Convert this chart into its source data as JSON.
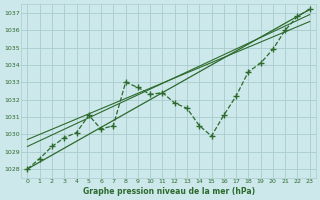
{
  "xlabel": "Graphe pression niveau de la mer (hPa)",
  "bg_color": "#cce8ea",
  "grid_color": "#aacccc",
  "line_color": "#2d6a2d",
  "xlim": [
    -0.5,
    23.5
  ],
  "ylim": [
    1027.5,
    1037.5
  ],
  "yticks": [
    1028,
    1029,
    1030,
    1031,
    1032,
    1033,
    1034,
    1035,
    1036,
    1037
  ],
  "xticks": [
    0,
    1,
    2,
    3,
    4,
    5,
    6,
    7,
    8,
    9,
    10,
    11,
    12,
    13,
    14,
    15,
    16,
    17,
    18,
    19,
    20,
    21,
    22,
    23
  ],
  "data_x": [
    0,
    1,
    2,
    3,
    4,
    5,
    6,
    7,
    8,
    9,
    10,
    11,
    12,
    13,
    14,
    15,
    16,
    17,
    18,
    19,
    20,
    21,
    22,
    23
  ],
  "data_y": [
    1028.0,
    1028.6,
    1029.3,
    1029.8,
    1030.1,
    1031.1,
    1030.3,
    1030.5,
    1033.0,
    1032.7,
    1032.3,
    1032.4,
    1031.8,
    1031.5,
    1030.5,
    1029.9,
    1031.1,
    1032.2,
    1033.6,
    1034.1,
    1034.9,
    1036.0,
    1036.8,
    1037.2
  ],
  "trend1_x": [
    0,
    23
  ],
  "trend1_y": [
    1028.0,
    1037.2
  ],
  "trend2_x": [
    0,
    23
  ],
  "trend2_y": [
    1029.3,
    1036.9
  ],
  "trend3_x": [
    0,
    23
  ],
  "trend3_y": [
    1029.7,
    1036.5
  ]
}
